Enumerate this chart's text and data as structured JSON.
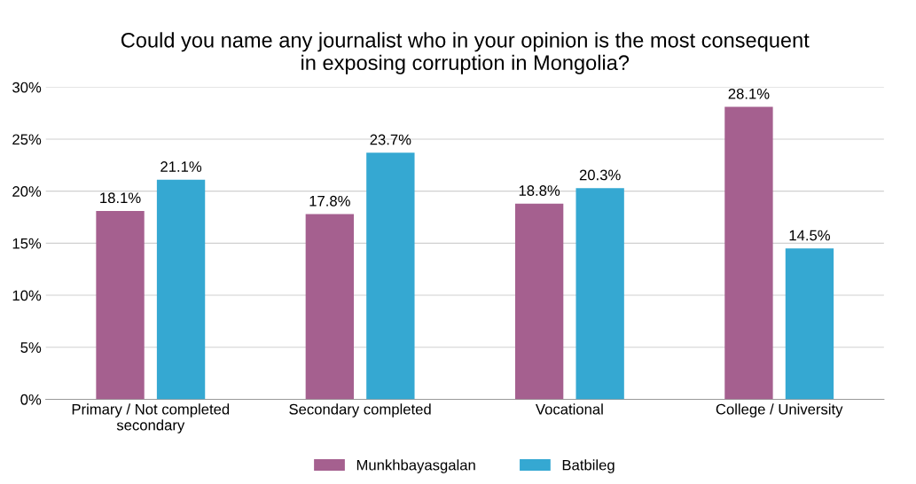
{
  "chart_data": {
    "type": "bar",
    "title": "Could you name any journalist who in your opinion is the most consequent\nin exposing corruption in Mongolia?",
    "categories": [
      "Primary / Not completed\nsecondary",
      "Secondary completed",
      "Vocational",
      "College / University"
    ],
    "series": [
      {
        "name": "Munkhbayasgalan",
        "color": "#a5608f",
        "values": [
          18.1,
          17.8,
          18.8,
          28.1
        ],
        "value_labels": [
          "18.1%",
          "17.8%",
          "18.8%",
          "28.1%"
        ]
      },
      {
        "name": "Batbileg",
        "color": "#35a8d2",
        "values": [
          21.1,
          23.7,
          20.3,
          14.5
        ],
        "value_labels": [
          "21.1%",
          "23.7%",
          "20.3%",
          "14.5%"
        ]
      }
    ],
    "ylim": [
      0,
      30
    ],
    "yticks": [
      {
        "value": 0,
        "label": "0%"
      },
      {
        "value": 5,
        "label": "5%"
      },
      {
        "value": 10,
        "label": "10%"
      },
      {
        "value": 15,
        "label": "15%"
      },
      {
        "value": 20,
        "label": "20%"
      },
      {
        "value": 25,
        "label": "25%"
      },
      {
        "value": 30,
        "label": "30%"
      }
    ],
    "grid": "y",
    "legend": "bottom"
  }
}
